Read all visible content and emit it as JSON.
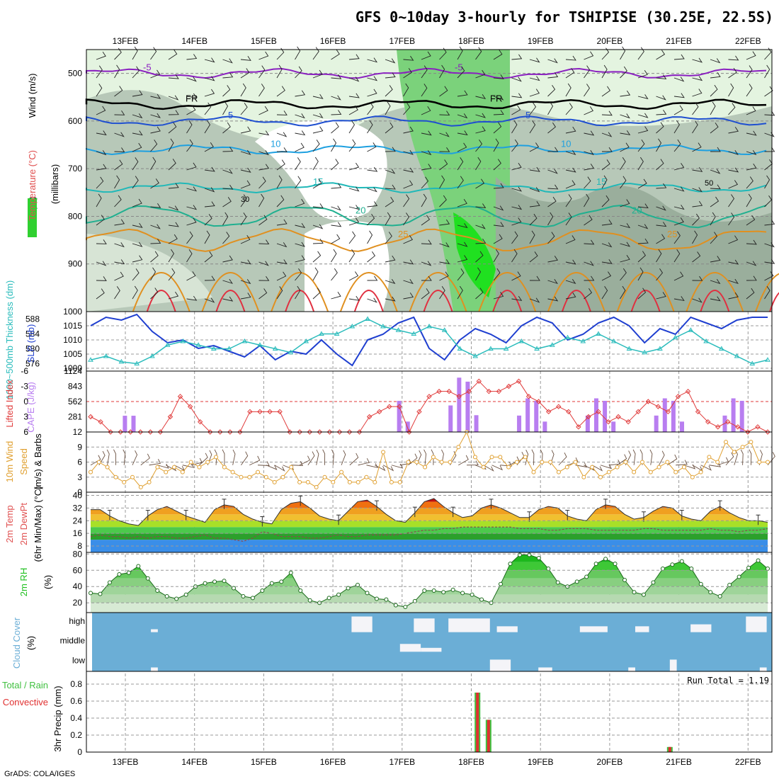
{
  "title": "GFS 0~10day 3-hourly for TSHIPISE (30.25E, 22.5S)",
  "credit": "GrADS: COLA/IGES",
  "colors": {
    "grid": "#999999",
    "rh_light": "#e4f4e0",
    "rh_mid": "#c7d8c6",
    "rh_dark": "#9aae9c",
    "rh_green": "#7bd27b",
    "rh_bright": "#20e020",
    "slp": "#1f3fd0",
    "thick": "#2bbcbc",
    "cape": "#b87ef0",
    "li": "#e03a3a",
    "wind_speed": "#e0a030",
    "barb": "#6a5040",
    "rh2m": "#20c020",
    "cloud": "#6baed6",
    "precip_total": "#40c040",
    "precip_conv": "#e03030"
  },
  "chart_data": [
    {
      "id": "cross_section",
      "type": "heatmap",
      "ylabel_parts": [
        "Wind (m/s)",
        "Temperature (°C)",
        "RH (%)"
      ],
      "ylabel2": "(millibars)",
      "categories": [
        "13FEB",
        "14FEB",
        "15FEB",
        "16FEB",
        "17FEB",
        "18FEB",
        "19FEB",
        "20FEB",
        "21FEB",
        "22FEB"
      ],
      "yticks": [
        500,
        600,
        700,
        800,
        900,
        1000
      ],
      "ylim": [
        1000,
        450
      ],
      "isotherms": [
        {
          "label": "-5",
          "color": "#8a20c0",
          "level": 500
        },
        {
          "label": "FR",
          "color": "#000000",
          "level": 565
        },
        {
          "label": "5",
          "color": "#1f4fd0",
          "level": 600
        },
        {
          "label": "10",
          "color": "#1ea0e0",
          "level": 660
        },
        {
          "label": "15",
          "color": "#20b8b8",
          "level": 740
        },
        {
          "label": "20",
          "color": "#20b090",
          "level": 800
        },
        {
          "label": "25",
          "color": "#e09020",
          "level": 850
        }
      ],
      "rh_labels": [
        "30",
        "50"
      ]
    },
    {
      "id": "pressure",
      "type": "line",
      "ylabel_left": "1000~500mb Thickness (dm)",
      "ylabel_right": "SLP (mb)",
      "left_ticks": [
        576,
        580,
        584,
        588
      ],
      "right_ticks": [
        1000,
        1005,
        1010,
        1015
      ],
      "series": [
        {
          "name": "SLP (mb)",
          "values": [
            1015,
            1018,
            1017,
            1019,
            1013,
            1009,
            1010,
            1007,
            1008,
            1006,
            1004,
            1008,
            1003,
            1006,
            1005,
            1010,
            1005,
            1001,
            1010,
            1012,
            1016,
            1018,
            1007,
            1003,
            1010,
            1014,
            1012,
            1009,
            1015,
            1018,
            1016,
            1010,
            1012,
            1016,
            1018,
            1015,
            1009,
            1014,
            1012,
            1018,
            1016,
            1014,
            1017,
            1018,
            1018
          ]
        },
        {
          "name": "1000~500mb Thickness (dm)",
          "values": [
            577,
            578,
            576.5,
            576,
            578,
            581,
            582,
            581,
            580,
            580,
            582,
            581,
            580,
            579,
            582,
            584,
            584,
            586,
            588,
            586,
            585,
            584,
            586,
            585,
            580,
            578,
            580,
            580,
            582,
            580,
            581,
            583,
            582,
            584,
            582,
            580,
            579,
            580,
            583,
            585,
            582,
            580,
            578,
            576,
            577
          ]
        }
      ]
    },
    {
      "id": "instability",
      "type": "bar",
      "ylabel_left": "Lifted Index",
      "ylabel_right": "CAPE (J/kg)",
      "li_ticks": [
        -6,
        -3,
        0,
        3,
        6
      ],
      "cape_ticks": [
        281,
        562,
        843,
        1124
      ],
      "series": [
        {
          "name": "CAPE (J/kg)",
          "values": [
            0,
            0,
            0,
            0,
            0,
            0,
            0,
            0,
            0,
            0,
            0,
            0,
            0,
            0,
            0,
            0,
            0,
            0,
            0,
            0,
            0,
            0,
            0,
            0,
            0,
            0,
            0,
            0,
            0,
            0,
            0,
            0,
            0,
            0,
            0,
            0,
            0,
            0,
            0,
            0,
            0,
            0,
            0,
            0,
            0,
            0,
            0,
            0,
            0,
            0,
            0,
            0,
            0,
            0,
            0,
            0,
            0,
            0,
            0,
            0,
            0,
            0,
            0,
            0,
            0,
            0,
            0,
            0,
            0,
            0,
            0,
            0,
            0,
            0,
            0,
            0,
            0,
            0,
            0,
            0,
            0
          ]
        },
        {
          "name": "Lifted Index",
          "values": [
            3,
            4,
            6,
            6,
            6,
            6,
            6,
            6,
            3,
            -1,
            1,
            4,
            6,
            6,
            6,
            6,
            2,
            2,
            2,
            2,
            6,
            6,
            6,
            6,
            6,
            6,
            6,
            6,
            3,
            2,
            1,
            1,
            6,
            2,
            -1,
            -2,
            -2,
            -1,
            -2,
            -4,
            -2,
            -2,
            -3,
            -4,
            -1,
            0,
            2,
            1,
            2,
            5,
            3,
            2,
            4,
            3,
            4,
            2,
            0,
            1,
            2,
            -1,
            -2,
            2,
            4,
            5,
            4,
            5,
            6,
            5,
            6
          ]
        }
      ],
      "cape_bars": [
        0,
        0,
        0,
        0,
        0,
        0,
        0,
        0,
        0,
        0,
        0,
        0,
        0,
        0,
        0,
        0,
        0,
        0,
        0,
        0,
        0,
        0,
        0,
        0,
        0,
        0,
        0,
        0,
        0,
        0,
        0,
        0,
        0,
        0,
        0,
        0,
        0,
        0,
        0,
        0,
        0,
        0,
        0,
        0,
        0,
        0,
        0,
        0,
        0,
        0,
        0,
        0,
        0,
        0,
        0,
        0,
        0,
        0,
        0,
        0,
        0,
        0,
        0,
        0,
        0,
        0,
        0,
        0,
        0,
        0,
        0,
        0,
        0,
        0,
        0,
        0,
        0,
        0,
        0,
        0,
        0
      ]
    },
    {
      "id": "wind10m",
      "type": "line",
      "ylabel_parts": [
        "10m Wind",
        "Speed",
        "(m/s) & Barbs"
      ],
      "yticks": [
        0,
        3,
        6,
        9,
        12
      ],
      "ylim": [
        0,
        12
      ],
      "series": [
        {
          "name": "10m Wind Speed (m/s)",
          "values": [
            4,
            6,
            5,
            3,
            2,
            3,
            1,
            2,
            5,
            4,
            5,
            4,
            6,
            5,
            6,
            7,
            5,
            4,
            3,
            3,
            4,
            3,
            2,
            3,
            5,
            2,
            2,
            1,
            3,
            2,
            4,
            2,
            2,
            3,
            2,
            8,
            2,
            2,
            6,
            6,
            5,
            7,
            6,
            6,
            9,
            12,
            7,
            5,
            7,
            7,
            5,
            6,
            7,
            4,
            6,
            6,
            4,
            5,
            6,
            3,
            5,
            3,
            4,
            5,
            6,
            4,
            6,
            4,
            5,
            6,
            4,
            5,
            3,
            4,
            7,
            6,
            10,
            8,
            9,
            10,
            6,
            6
          ]
        }
      ]
    },
    {
      "id": "temperature",
      "type": "area",
      "ylabel_parts": [
        "2m Temp",
        "2m DewPt",
        "(6hr Min/Max) (°C)"
      ],
      "yticks": [
        8,
        16,
        24,
        32,
        40
      ],
      "ylim": [
        4,
        42
      ],
      "series": [
        {
          "name": "2m Temp",
          "values": [
            31,
            31,
            27,
            24,
            22,
            21,
            27,
            31,
            33,
            30,
            27,
            25,
            23,
            31,
            34,
            33,
            28,
            25,
            23,
            22,
            31,
            35,
            36,
            32,
            27,
            25,
            24,
            30,
            36,
            37,
            33,
            28,
            24,
            23,
            29,
            36,
            38,
            33,
            29,
            26,
            27,
            32,
            34,
            32,
            29,
            26,
            26,
            31,
            33,
            32,
            27,
            25,
            24,
            31,
            34,
            33,
            28,
            25,
            26,
            30,
            33,
            32,
            27,
            25,
            24,
            30,
            33,
            29,
            26,
            24,
            24,
            23
          ]
        },
        {
          "name": "2m DewPt",
          "values": [
            14,
            15,
            14,
            14,
            13,
            14,
            13,
            14,
            14,
            13,
            13,
            14,
            15,
            13,
            13,
            12,
            11,
            13,
            17,
            16,
            14,
            14,
            14,
            13,
            13,
            14,
            15,
            14,
            14,
            15,
            15,
            15,
            15,
            16,
            17,
            18,
            18,
            19,
            19,
            20,
            20,
            20,
            20,
            20,
            20,
            19,
            19,
            19,
            18,
            18,
            19,
            19,
            19,
            18,
            18,
            18,
            18,
            18,
            19,
            19,
            18,
            18,
            18,
            18,
            18,
            19,
            18,
            18,
            17,
            18,
            18,
            19
          ]
        }
      ]
    },
    {
      "id": "rh2m",
      "type": "area",
      "ylabel_parts": [
        "2m RH",
        "(%)"
      ],
      "yticks": [
        20,
        40,
        60,
        80
      ],
      "ylim": [
        8,
        82
      ],
      "series": [
        {
          "name": "2m RH (%)",
          "values": [
            32,
            31,
            45,
            55,
            57,
            65,
            50,
            35,
            28,
            25,
            30,
            40,
            44,
            46,
            47,
            38,
            28,
            26,
            35,
            44,
            46,
            57,
            35,
            23,
            20,
            26,
            30,
            38,
            42,
            32,
            25,
            24,
            17,
            15,
            22,
            35,
            35,
            33,
            36,
            32,
            30,
            24,
            20,
            43,
            68,
            79,
            79,
            75,
            62,
            45,
            40,
            46,
            52,
            68,
            74,
            68,
            48,
            33,
            30,
            45,
            62,
            67,
            71,
            62,
            43,
            33,
            28,
            42,
            52,
            63,
            72,
            62
          ]
        }
      ]
    },
    {
      "id": "cloud",
      "type": "bar",
      "ylabel_parts": [
        "Cloud Cover",
        "(%)"
      ],
      "rows": [
        "high",
        "middle",
        "low"
      ],
      "series": [
        {
          "name": "high",
          "values": [
            0,
            0,
            0,
            0,
            0,
            0,
            0,
            0,
            0,
            0,
            0,
            0,
            0,
            0,
            0,
            0,
            0,
            0,
            0,
            0,
            0,
            0,
            0,
            0,
            0,
            0,
            0,
            0,
            0,
            0,
            0,
            0,
            0,
            0,
            0,
            0,
            0,
            0,
            0,
            0,
            0,
            0,
            0,
            0,
            0,
            0,
            0,
            0,
            0,
            0,
            0,
            0,
            0,
            0,
            0,
            0,
            0,
            0,
            0,
            0,
            0,
            0,
            0,
            0,
            0,
            0,
            0,
            0,
            0,
            0,
            0,
            0
          ]
        },
        {
          "name": "middle",
          "values": [
            0,
            0,
            0,
            0,
            0,
            0,
            0,
            0,
            0,
            0,
            0,
            0,
            0,
            0,
            0,
            0,
            0,
            0,
            0,
            0,
            0,
            0,
            0,
            0,
            0,
            0,
            0,
            0,
            0,
            0,
            0,
            0,
            0,
            0,
            0,
            0,
            0,
            0,
            0,
            0,
            0,
            0,
            0,
            0,
            0,
            0,
            0,
            0,
            0,
            0,
            0,
            0,
            0,
            0,
            0,
            0,
            0,
            0,
            0,
            0,
            0,
            0,
            0,
            0,
            0,
            0,
            0,
            0,
            0,
            0,
            0,
            0
          ]
        },
        {
          "name": "low",
          "values": [
            0,
            0,
            0,
            0,
            0,
            0,
            0,
            0,
            0,
            0,
            0,
            0,
            0,
            0,
            0,
            0,
            0,
            0,
            0,
            0,
            0,
            0,
            0,
            0,
            0,
            0,
            0,
            0,
            0,
            0,
            0,
            0,
            0,
            0,
            0,
            0,
            0,
            0,
            0,
            0,
            0,
            0,
            0,
            0,
            0,
            0,
            0,
            0,
            0,
            0,
            0,
            0,
            0,
            0,
            0,
            0,
            0,
            0,
            0,
            0,
            0,
            0,
            0,
            0,
            0,
            0,
            0,
            0,
            0,
            0,
            0,
            0
          ]
        }
      ]
    },
    {
      "id": "precip",
      "type": "bar",
      "ylabel_left_parts": [
        "Total / Rain",
        "Convective"
      ],
      "ylabel": "3hr Precip (mm)",
      "yticks": [
        0,
        0.2,
        0.4,
        0.6,
        0.8
      ],
      "ylim": [
        0,
        0.95
      ],
      "run_total": "Run Total = 1.19",
      "series": [
        {
          "name": "Total / Rain",
          "values": [
            0.7,
            0.38,
            0.06
          ]
        },
        {
          "name": "Convective",
          "values": [
            0.7,
            0.38,
            0.06
          ]
        }
      ],
      "bar_days": [
        5.12,
        5.28,
        7.9
      ]
    }
  ]
}
